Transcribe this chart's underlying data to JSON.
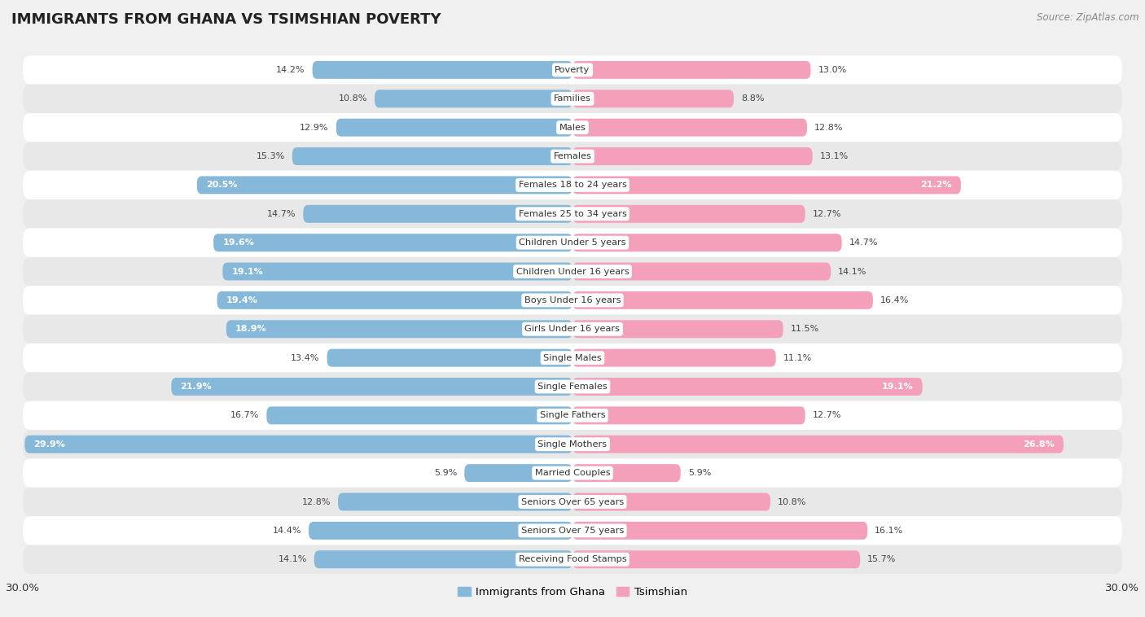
{
  "title": "IMMIGRANTS FROM GHANA VS TSIMSHIAN POVERTY",
  "source": "Source: ZipAtlas.com",
  "categories": [
    "Poverty",
    "Families",
    "Males",
    "Females",
    "Females 18 to 24 years",
    "Females 25 to 34 years",
    "Children Under 5 years",
    "Children Under 16 years",
    "Boys Under 16 years",
    "Girls Under 16 years",
    "Single Males",
    "Single Females",
    "Single Fathers",
    "Single Mothers",
    "Married Couples",
    "Seniors Over 65 years",
    "Seniors Over 75 years",
    "Receiving Food Stamps"
  ],
  "ghana_values": [
    14.2,
    10.8,
    12.9,
    15.3,
    20.5,
    14.7,
    19.6,
    19.1,
    19.4,
    18.9,
    13.4,
    21.9,
    16.7,
    29.9,
    5.9,
    12.8,
    14.4,
    14.1
  ],
  "tsimshian_values": [
    13.0,
    8.8,
    12.8,
    13.1,
    21.2,
    12.7,
    14.7,
    14.1,
    16.4,
    11.5,
    11.1,
    19.1,
    12.7,
    26.8,
    5.9,
    10.8,
    16.1,
    15.7
  ],
  "ghana_color": "#85b8d9",
  "tsimshian_color": "#f4a0bb",
  "background_color": "#f0f0f0",
  "row_white_color": "#ffffff",
  "row_gray_color": "#e8e8e8",
  "xlim": 30.0,
  "bar_height": 0.62,
  "legend_labels": [
    "Immigrants from Ghana",
    "Tsimshian"
  ],
  "inside_label_threshold": 18.0
}
